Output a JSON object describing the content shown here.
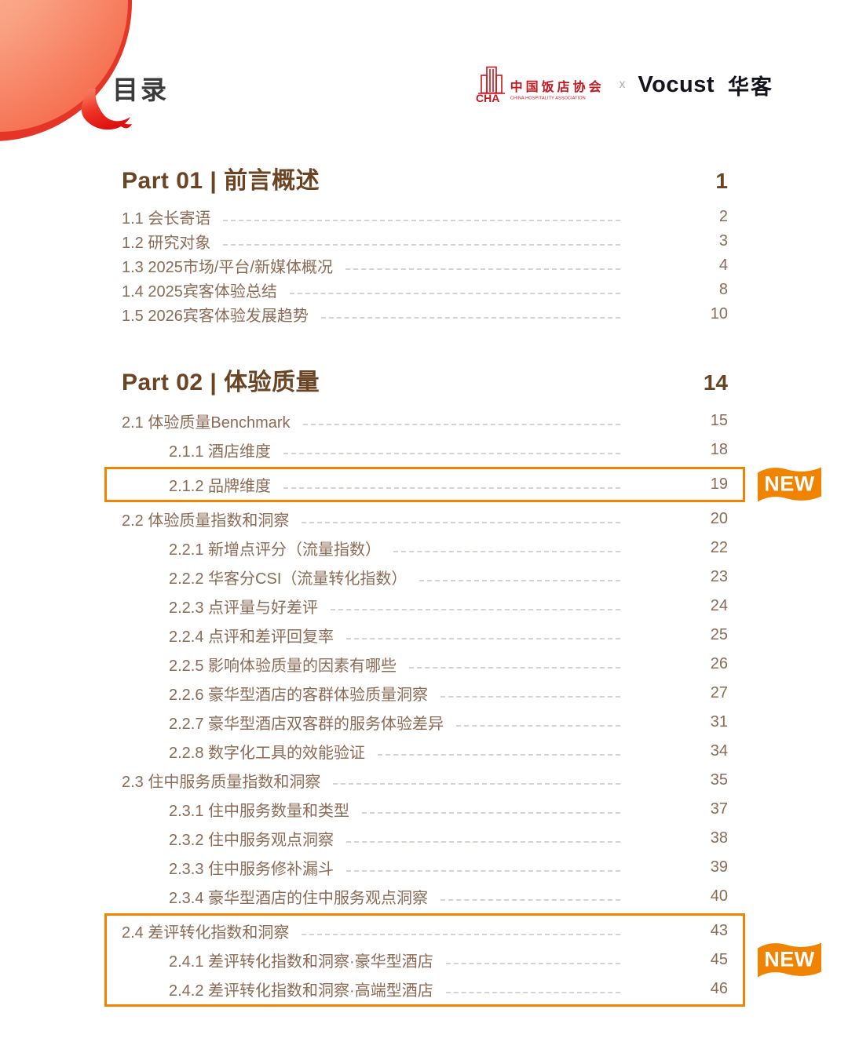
{
  "page": {
    "title": "目录"
  },
  "header": {
    "association": {
      "icon": "cha-building-icon",
      "name_cn": "中国饭店协会",
      "name_en": "CHINA HOSPITALITY ASSOCIATION"
    },
    "separator": "x",
    "partner": {
      "wordmark": "Vocust",
      "name_cn": "华客"
    }
  },
  "badges": {
    "new_label": "NEW"
  },
  "colors": {
    "accent_orange": "#F08300",
    "heading_brown": "#6B4423",
    "item_brown": "#8B6B56",
    "logo_red": "#C8161E",
    "blob_gradient_start": "#FBC09F",
    "blob_gradient_end": "#F4583A",
    "tail_red": "#DE1212"
  },
  "toc": {
    "parts": [
      {
        "label": "Part 01 | 前言概述",
        "page": "1",
        "items": [
          {
            "num": "1.1",
            "title": "会长寄语",
            "page": "2",
            "level": 1
          },
          {
            "num": "1.2",
            "title": "研究对象",
            "page": "3",
            "level": 1
          },
          {
            "num": "1.3",
            "title": "2025市场/平台/新媒体概况",
            "page": "4",
            "level": 1
          },
          {
            "num": "1.4",
            "title": "2025宾客体验总结",
            "page": "8",
            "level": 1
          },
          {
            "num": "1.5",
            "title": "2026宾客体验发展趋势",
            "page": "10",
            "level": 1
          }
        ],
        "highlight_boxes": []
      },
      {
        "label": "Part 02 | 体验质量",
        "page": "14",
        "items": [
          {
            "num": "2.1",
            "title": "体验质量Benchmark",
            "page": "15",
            "level": 1
          },
          {
            "num": "2.1.1",
            "title": "酒店维度",
            "page": "18",
            "level": 2
          },
          {
            "num": "2.1.2",
            "title": "品牌维度",
            "page": "19",
            "level": 2
          },
          {
            "num": "2.2",
            "title": "体验质量指数和洞察",
            "page": "20",
            "level": 1
          },
          {
            "num": "2.2.1",
            "title": "新增点评分（流量指数）",
            "page": "22",
            "level": 2
          },
          {
            "num": "2.2.2",
            "title": "华客分CSI（流量转化指数）",
            "page": "23",
            "level": 2
          },
          {
            "num": "2.2.3",
            "title": "点评量与好差评",
            "page": "24",
            "level": 2
          },
          {
            "num": "2.2.4",
            "title": "点评和差评回复率",
            "page": "25",
            "level": 2
          },
          {
            "num": "2.2.5",
            "title": "影响体验质量的因素有哪些",
            "page": "26",
            "level": 2
          },
          {
            "num": "2.2.6",
            "title": "豪华型酒店的客群体验质量洞察",
            "page": "27",
            "level": 2
          },
          {
            "num": "2.2.7",
            "title": "豪华型酒店双客群的服务体验差异",
            "page": "31",
            "level": 2
          },
          {
            "num": "2.2.8",
            "title": "数字化工具的效能验证",
            "page": "34",
            "level": 2
          },
          {
            "num": "2.3",
            "title": "住中服务质量指数和洞察",
            "page": "35",
            "level": 1
          },
          {
            "num": "2.3.1",
            "title": "住中服务数量和类型",
            "page": "37",
            "level": 2
          },
          {
            "num": "2.3.2",
            "title": "住中服务观点洞察",
            "page": "38",
            "level": 2
          },
          {
            "num": "2.3.3",
            "title": "住中服务修补漏斗",
            "page": "39",
            "level": 2
          },
          {
            "num": "2.3.4",
            "title": "豪华型酒店的住中服务观点洞察",
            "page": "40",
            "level": 2
          },
          {
            "num": "2.4",
            "title": "差评转化指数和洞察",
            "page": "43",
            "level": 1
          },
          {
            "num": "2.4.1",
            "title": "差评转化指数和洞察·豪华型酒店",
            "page": "45",
            "level": 2
          },
          {
            "num": "2.4.2",
            "title": "差评转化指数和洞察·高端型酒店",
            "page": "46",
            "level": 2
          }
        ],
        "highlight_boxes": [
          {
            "start": 2,
            "end": 2,
            "badge": "NEW"
          },
          {
            "start": 17,
            "end": 19,
            "badge": "NEW"
          }
        ]
      }
    ]
  }
}
